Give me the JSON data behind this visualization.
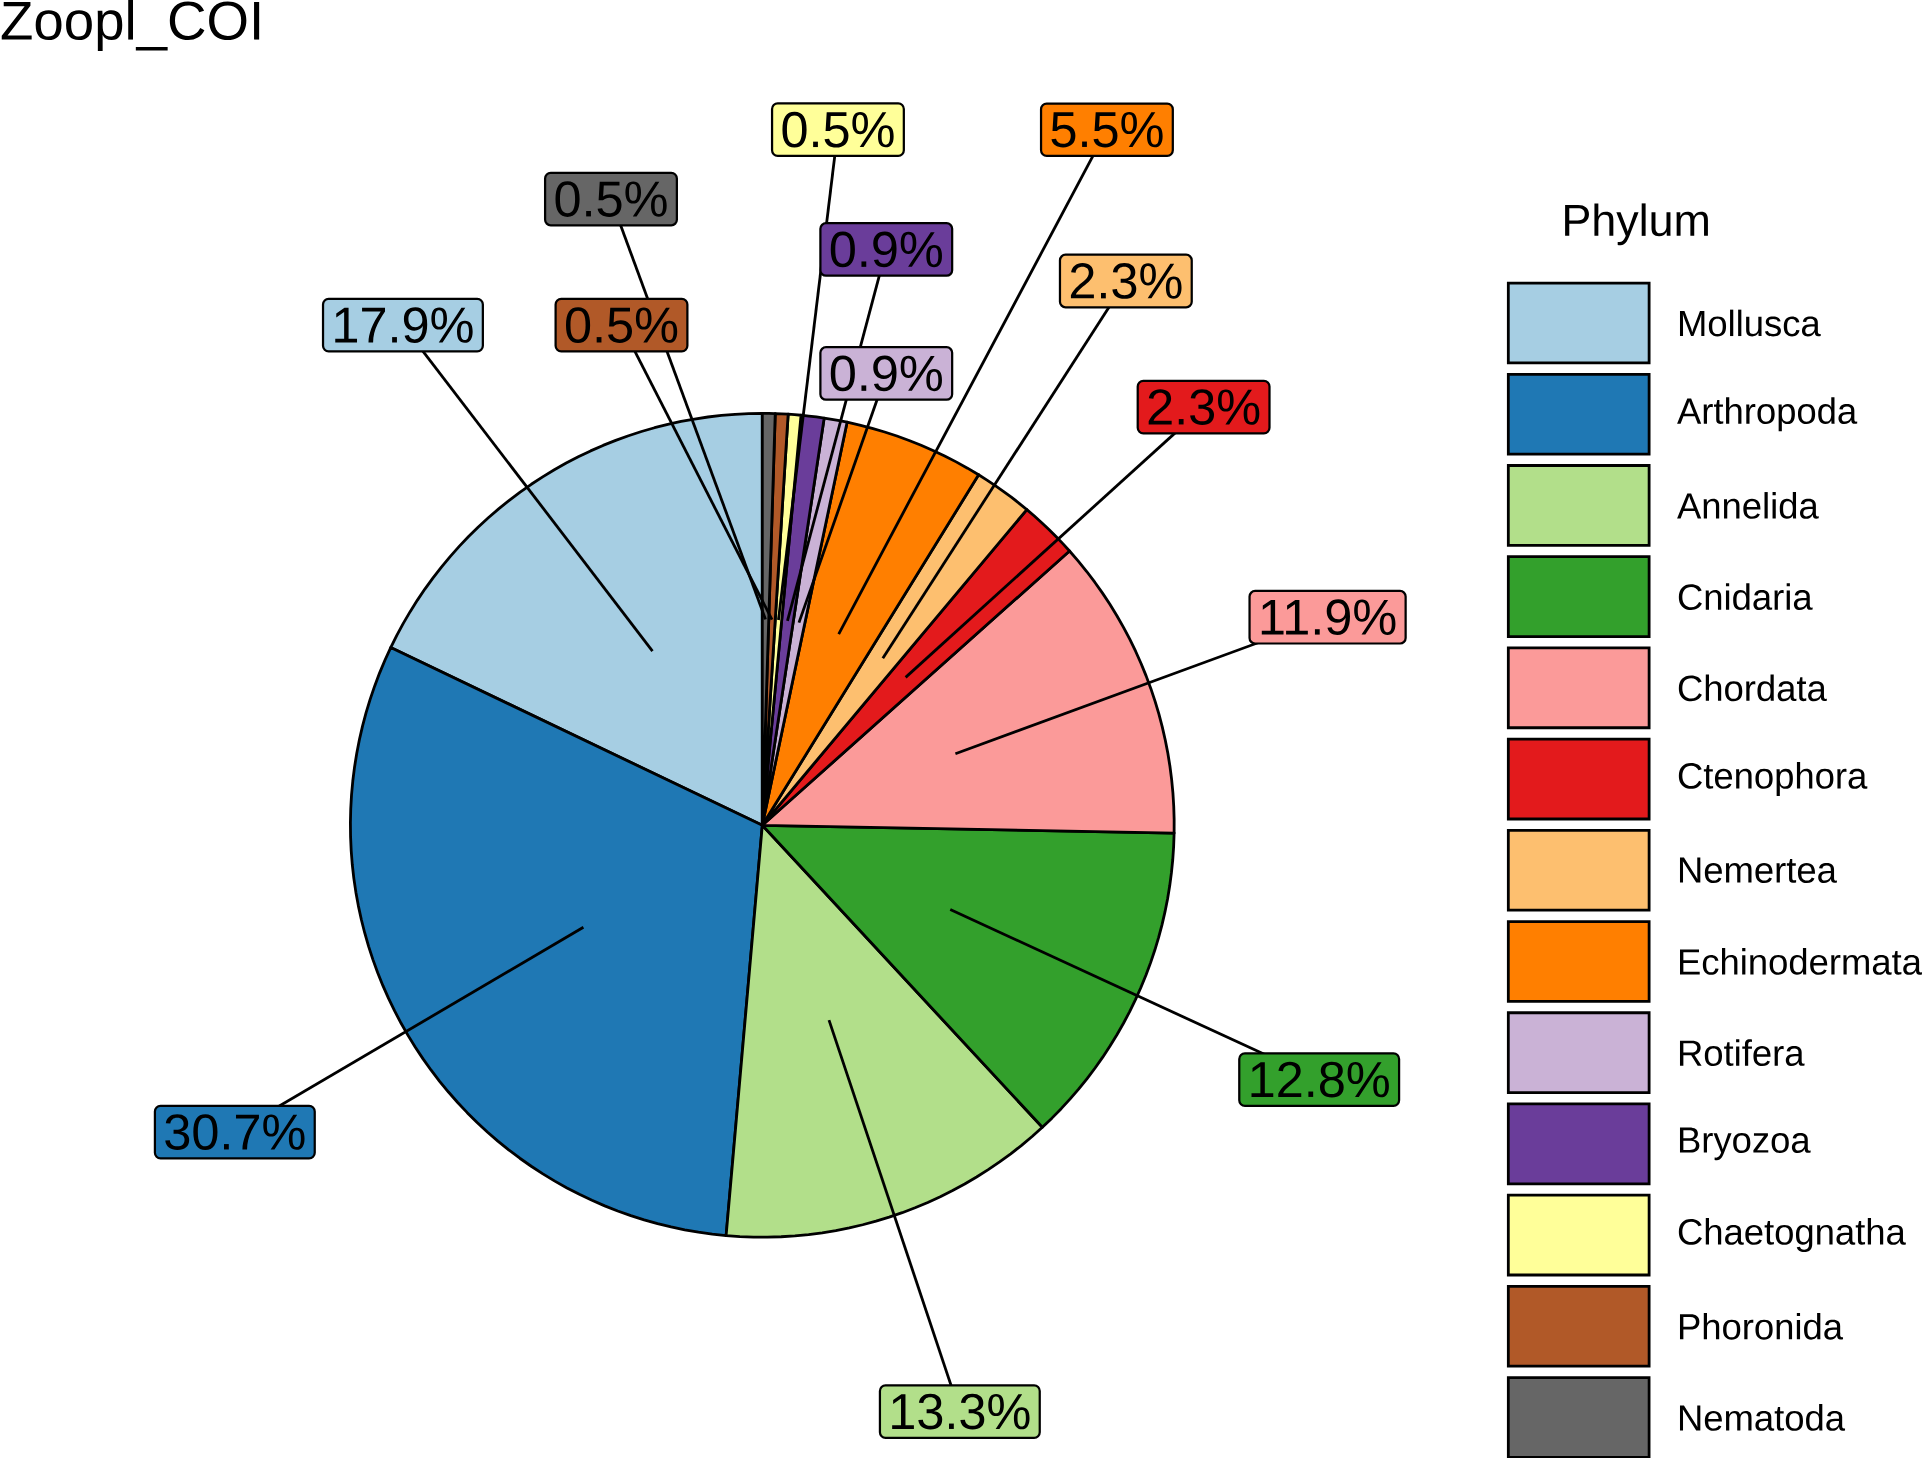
{
  "chart_data": {
    "type": "pie",
    "title": "Zoopl_COI",
    "legend_title": "Phylum",
    "legend": "right",
    "categories": [
      "Mollusca",
      "Arthropoda",
      "Annelida",
      "Cnidaria",
      "Chordata",
      "Ctenophora",
      "Nemertea",
      "Echinodermata",
      "Rotifera",
      "Bryozoa",
      "Chaetognatha",
      "Phoronida",
      "Nematoda"
    ],
    "values": [
      17.9,
      30.7,
      13.3,
      12.8,
      11.9,
      2.3,
      2.3,
      5.5,
      0.9,
      0.9,
      0.5,
      0.5,
      0.5
    ],
    "value_labels": [
      "17.9%",
      "30.7%",
      "13.3%",
      "12.8%",
      "11.9%",
      "2.3%",
      "2.3%",
      "5.5%",
      "0.9%",
      "0.9%",
      "0.5%",
      "0.5%",
      "0.5%"
    ],
    "colors": [
      "#a6cee3",
      "#1f78b4",
      "#b2df8a",
      "#33a02c",
      "#fb9a99",
      "#e31a1c",
      "#fdbf6f",
      "#ff7f00",
      "#cab2d6",
      "#6a3d9a",
      "#ffff99",
      "#b15928",
      "#666666"
    ]
  }
}
